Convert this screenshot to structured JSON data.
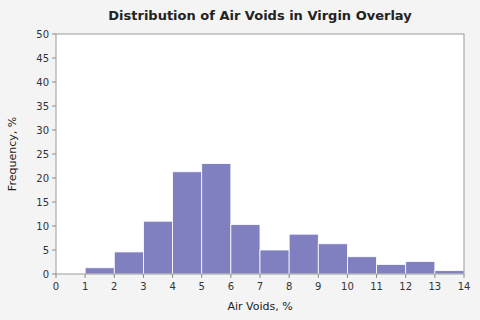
{
  "chart_data": {
    "type": "histogram",
    "title": "Distribution of Air Voids in Virgin Overlay",
    "x_label": "Air Voids, %",
    "y_label": "Frequency, %",
    "bins": [
      0,
      1,
      2,
      3,
      4,
      5,
      6,
      7,
      8,
      9,
      10,
      11,
      12,
      13,
      14
    ],
    "values": [
      0,
      1.3,
      4.6,
      11.0,
      21.3,
      23.0,
      10.3,
      5.0,
      8.3,
      6.3,
      3.6,
      2.0,
      2.6,
      0.7
    ],
    "color": "#8080C0",
    "xlim": [
      0,
      14
    ],
    "ylim": [
      0,
      50
    ],
    "xticks": [
      0,
      1,
      2,
      3,
      4,
      5,
      6,
      7,
      8,
      9,
      10,
      11,
      12,
      13,
      14
    ],
    "yticks": [
      0,
      5,
      10,
      15,
      20,
      25,
      30,
      35,
      40,
      45,
      50
    ],
    "grid": false
  }
}
